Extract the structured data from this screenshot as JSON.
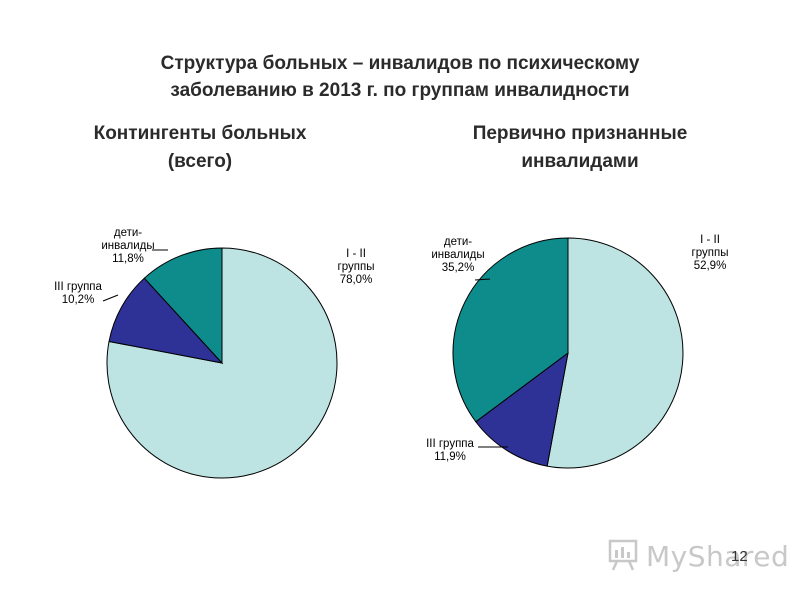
{
  "title_line1": "Структура больных – инвалидов по психическому",
  "title_line2": "заболеванию в 2013 г. по группам инвалидности",
  "page_number": "12",
  "watermark_text": "MyShared",
  "watermark_icon": "presentation-board-icon",
  "colors": {
    "group_1_2": "#bde3e3",
    "group_3": "#2e3196",
    "children": "#0e8b8b",
    "stroke": "#000000"
  },
  "chart_data": [
    {
      "type": "pie",
      "title_line1": "Контингенты больных",
      "title_line2": "(всего)",
      "slices": [
        {
          "label_line1": "I - II",
          "label_line2": "группы",
          "value_label": "78,0%",
          "value": 78.0
        },
        {
          "label_line1": "III группа",
          "label_line2": "",
          "value_label": "10,2%",
          "value": 10.2
        },
        {
          "label_line1": "дети-",
          "label_line2": "инвалиды",
          "value_label": "11,8%",
          "value": 11.8
        }
      ]
    },
    {
      "type": "pie",
      "title_line1": "Первично признанные",
      "title_line2": "инвалидами",
      "slices": [
        {
          "label_line1": "I - II",
          "label_line2": "группы",
          "value_label": "52,9%",
          "value": 52.9
        },
        {
          "label_line1": "III группа",
          "label_line2": "",
          "value_label": "11,9%",
          "value": 11.9
        },
        {
          "label_line1": "дети-",
          "label_line2": "инвалиды",
          "value_label": "35,2%",
          "value": 35.2
        }
      ]
    }
  ]
}
